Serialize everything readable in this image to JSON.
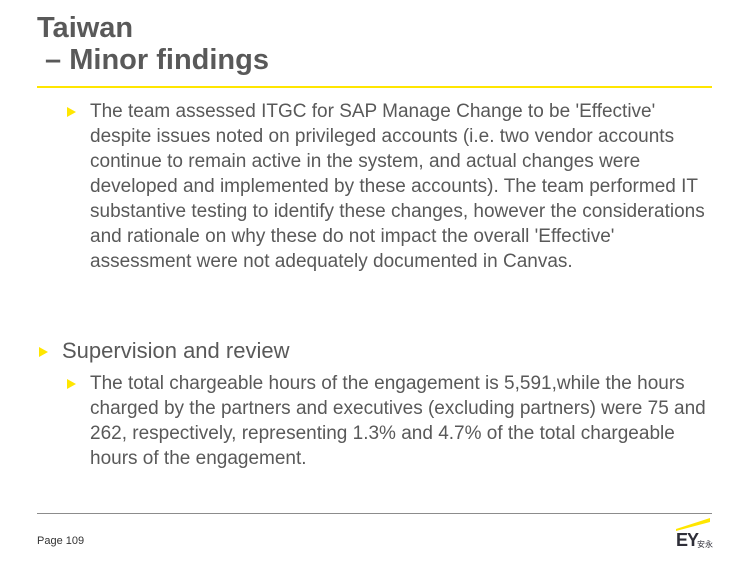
{
  "title": {
    "line1": "Taiwan",
    "line2": " – Minor findings"
  },
  "content": {
    "bullet1": "The team assessed ITGC for SAP Manage Change to be 'Effective' despite issues noted on privileged accounts (i.e. two vendor accounts continue to remain active in the system, and actual changes were developed and implemented by these accounts).  The team performed IT substantive testing to identify these changes, however the considerations and rationale on why these do not impact the overall 'Effective' assessment were not adequately documented in Canvas.",
    "section_heading": "Supervision and review",
    "bullet2": "The total chargeable hours of the engagement is 5,591,while the hours charged by the partners and executives (excluding partners) were 75 and 262, respectively, representing 1.3% and 4.7% of the total chargeable hours of the engagement."
  },
  "footer": {
    "page_label": "Page 109",
    "logo_text": "EY",
    "logo_cn": "安永"
  },
  "colors": {
    "accent": "#FFE600",
    "text": "#595959"
  },
  "icons": [
    "bullet-arrow-icon",
    "ey-logo-icon"
  ]
}
